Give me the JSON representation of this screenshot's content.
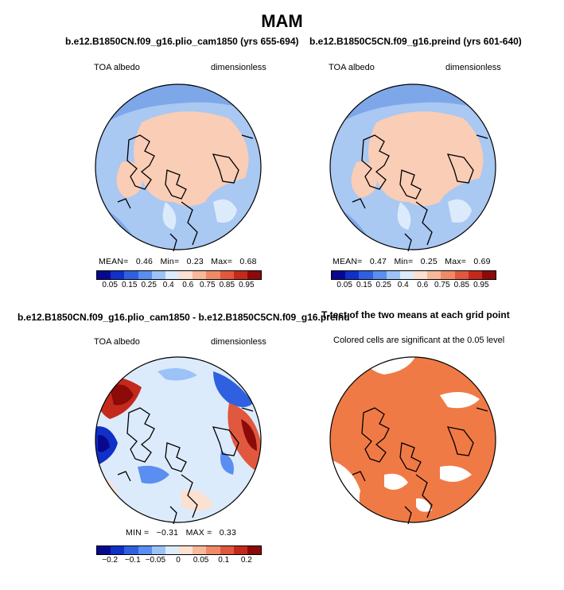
{
  "title": "MAM",
  "panels": [
    {
      "title": "b.e12.B1850CN.f09_g16.plio_cam1850 (yrs 655-694)",
      "left_label": "TOA albedo",
      "right_label": "dimensionless",
      "stats": {
        "mean_label": "MEAN=",
        "mean": "0.46",
        "min_label": "Min=",
        "min": "0.23",
        "max_label": "Max=",
        "max": "0.68"
      },
      "colorbar": {
        "colors": [
          "#08088f",
          "#1030c8",
          "#2f60e0",
          "#5a8ef0",
          "#9cc3f8",
          "#dcecfc",
          "#fce0d0",
          "#f8b89a",
          "#f08a66",
          "#e0583e",
          "#c42a1c",
          "#8c0a08"
        ],
        "ticks": [
          "0.05",
          "0.15",
          "0.25",
          "0.4",
          "0.6",
          "0.75",
          "0.85",
          "0.95"
        ]
      }
    },
    {
      "title": "b.e12.B1850C5CN.f09_g16.preind (yrs 601-640)",
      "left_label": "TOA albedo",
      "right_label": "dimensionless",
      "stats": {
        "mean_label": "MEAN=",
        "mean": "0.47",
        "min_label": "Min=",
        "min": "0.25",
        "max_label": "Max=",
        "max": "0.69"
      },
      "colorbar": {
        "colors": [
          "#08088f",
          "#1030c8",
          "#2f60e0",
          "#5a8ef0",
          "#9cc3f8",
          "#dcecfc",
          "#fce0d0",
          "#f8b89a",
          "#f08a66",
          "#e0583e",
          "#c42a1c",
          "#8c0a08"
        ],
        "ticks": [
          "0.05",
          "0.15",
          "0.25",
          "0.4",
          "0.6",
          "0.75",
          "0.85",
          "0.95"
        ]
      }
    },
    {
      "title": "b.e12.B1850CN.f09_g16.plio_cam1850 - b.e12.B1850C5CN.f09_g16.preind",
      "left_label": "TOA albedo",
      "right_label": "dimensionless",
      "stats": {
        "min_label": "MIN =",
        "min": "−0.31",
        "max_label": "MAX =",
        "max": "0.33"
      },
      "colorbar": {
        "colors": [
          "#08088f",
          "#1030c8",
          "#2f60e0",
          "#5a8ef0",
          "#9cc3f8",
          "#dcecfc",
          "#fce0d0",
          "#f8b89a",
          "#f08a66",
          "#e0583e",
          "#c42a1c",
          "#8c0a08"
        ],
        "ticks": [
          "−0.2",
          "−0.1",
          "−0.05",
          "0",
          "0.05",
          "0.1",
          "0.2"
        ]
      }
    },
    {
      "title": "T-test of the two means at each grid point",
      "caption": "Colored cells are significant at the 0.05 level"
    }
  ],
  "colors": {
    "land_pale": "#f9cdb6",
    "ocean_pale": "#a9c8f2",
    "ocean_mid": "#7ea7ea",
    "ice_pale": "#dcebfb",
    "significant": "#f07a45"
  }
}
